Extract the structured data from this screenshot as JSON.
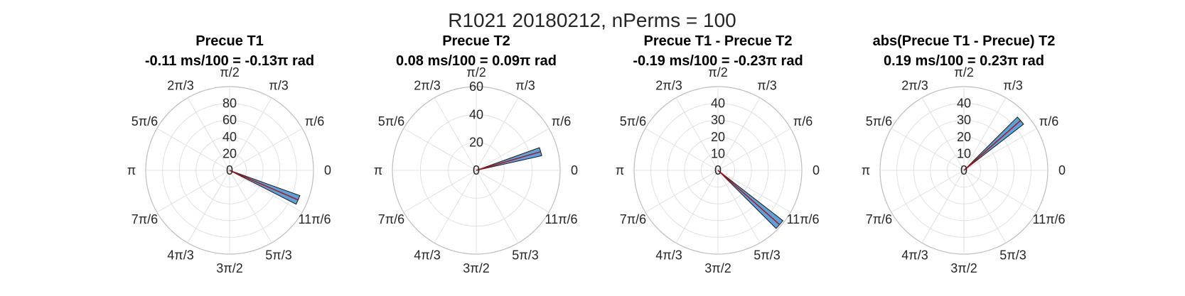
{
  "figure_title": "R1021 20180212, nPerms = 100",
  "theme": {
    "bar_fill": "#5aa2d9",
    "bar_edge": "#1a1a1a",
    "mean_line": "#b3121b",
    "grid": "#e0e0e0",
    "outer_circle": "#bdbdbd",
    "text": "#262626"
  },
  "chart_data": [
    {
      "type": "polar-histogram",
      "title_line1": "Precue T1",
      "title_line2": "-0.11 ms/100 = -0.13π rad",
      "theta_tick_labels": [
        "0",
        "π/6",
        "π/3",
        "π/2",
        "2π/3",
        "5π/6",
        "π",
        "7π/6",
        "4π/3",
        "3π/2",
        "5π/3",
        "11π/6"
      ],
      "r_tick_labels": [
        "0",
        "20",
        "40",
        "60",
        "80"
      ],
      "r_ticks": [
        0,
        20,
        40,
        60,
        80
      ],
      "rlim": [
        0,
        100
      ],
      "bars": [
        {
          "theta_center_pi": -0.13,
          "width_pi": 0.04,
          "count": 89
        }
      ],
      "mean_angle_pi": -0.13
    },
    {
      "type": "polar-histogram",
      "title_line1": "Precue T2",
      "title_line2": "0.08 ms/100 = 0.09π rad",
      "theta_tick_labels": [
        "0",
        "π/6",
        "π/3",
        "π/2",
        "2π/3",
        "5π/6",
        "π",
        "7π/6",
        "4π/3",
        "3π/2",
        "5π/3",
        "11π/6"
      ],
      "r_tick_labels": [
        "0",
        "20",
        "40",
        "60"
      ],
      "r_ticks": [
        0,
        20,
        40,
        60
      ],
      "rlim": [
        0,
        60
      ],
      "bars": [
        {
          "theta_center_pi": 0.09,
          "width_pi": 0.04,
          "count": 48
        }
      ],
      "mean_angle_pi": 0.09
    },
    {
      "type": "polar-histogram",
      "title_line1": "Precue T1 - Precue T2",
      "title_line2": "-0.19 ms/100 = -0.23π rad",
      "theta_tick_labels": [
        "0",
        "π/6",
        "π/3",
        "π/2",
        "2π/3",
        "5π/6",
        "π",
        "7π/6",
        "4π/3",
        "3π/2",
        "5π/3",
        "11π/6"
      ],
      "r_tick_labels": [
        "0",
        "10",
        "20",
        "30",
        "40"
      ],
      "r_ticks": [
        0,
        10,
        20,
        30,
        40
      ],
      "rlim": [
        0,
        50
      ],
      "bars": [
        {
          "theta_center_pi": -0.23,
          "width_pi": 0.04,
          "count": 49
        }
      ],
      "mean_angle_pi": -0.23
    },
    {
      "type": "polar-histogram",
      "title_line1": "abs(Precue T1 - Precue) T2",
      "title_line2": "0.19 ms/100 = 0.23π rad",
      "theta_tick_labels": [
        "0",
        "π/6",
        "π/3",
        "π/2",
        "2π/3",
        "5π/6",
        "π",
        "7π/6",
        "4π/3",
        "3π/2",
        "5π/3",
        "11π/6"
      ],
      "r_tick_labels": [
        "0",
        "10",
        "20",
        "30",
        "40"
      ],
      "r_ticks": [
        0,
        10,
        20,
        30,
        40
      ],
      "rlim": [
        0,
        50
      ],
      "bars": [
        {
          "theta_center_pi": 0.23,
          "width_pi": 0.04,
          "count": 45
        }
      ],
      "mean_angle_pi": 0.23
    }
  ]
}
